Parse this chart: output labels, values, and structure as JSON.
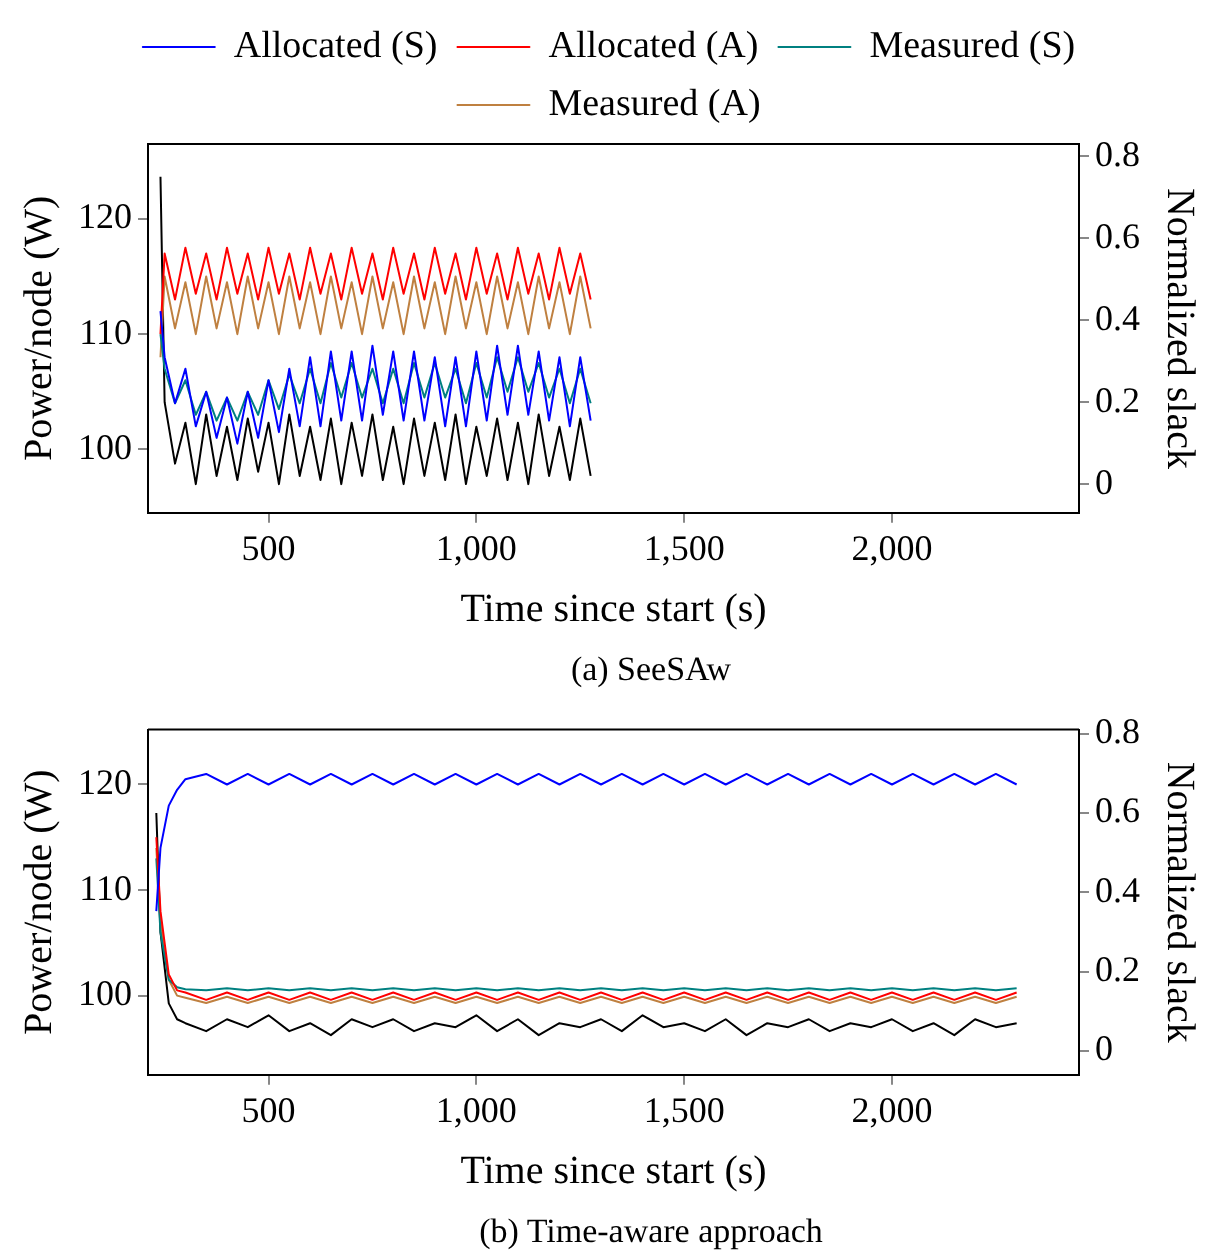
{
  "chart_data": [
    {
      "type": "line",
      "xlabel": "Time since start (s)",
      "ylabel": "Power/node (W)",
      "y2label": "Normalized slack",
      "annotations": [
        "(a) SeeSAw"
      ],
      "legend": "top",
      "marker": "none",
      "line_style": "solid",
      "x": [
        240,
        250,
        275,
        300,
        325,
        350,
        375,
        400,
        425,
        450,
        475,
        500,
        525,
        550,
        575,
        600,
        625,
        650,
        675,
        700,
        725,
        750,
        775,
        800,
        825,
        850,
        875,
        900,
        925,
        950,
        975,
        1000,
        1025,
        1050,
        1075,
        1100,
        1125,
        1150,
        1175,
        1200,
        1225,
        1250,
        1275
      ],
      "xlim": [
        210,
        2450
      ],
      "xticks": [
        {
          "value": 500,
          "label": "500"
        },
        {
          "value": 1000,
          "label": "1,000"
        },
        {
          "value": 1500,
          "label": "1,500"
        },
        {
          "value": 2000,
          "label": "2,000"
        }
      ],
      "ylim": [
        94.5,
        126.5
      ],
      "yticks": [
        100,
        110,
        120
      ],
      "y2lim": [
        -0.07,
        0.83
      ],
      "y2ticks": [
        0,
        0.2,
        0.4,
        0.6,
        0.8
      ],
      "series": [
        {
          "name": "Allocated (S)",
          "color": "#0000ff",
          "values": [
            112,
            108,
            104,
            107,
            102,
            105,
            101,
            104.5,
            100.5,
            105,
            101,
            106,
            101.5,
            107,
            102,
            108,
            102,
            108.5,
            102.5,
            108.5,
            102.5,
            109,
            103,
            108.5,
            102.5,
            108.5,
            102.5,
            108,
            102,
            108,
            102,
            108.5,
            102.5,
            109,
            103,
            109,
            103,
            108.5,
            102.5,
            108,
            102,
            108,
            102.5
          ]
        },
        {
          "name": "Allocated (A)",
          "color": "#ff0000",
          "values": [
            110,
            117,
            113,
            117.5,
            113.5,
            117,
            113,
            117.5,
            113.5,
            117,
            113,
            117.5,
            113.5,
            117,
            113,
            117.5,
            113.5,
            117,
            113,
            117.5,
            113.5,
            117,
            113,
            117.5,
            113.5,
            117,
            113,
            117.5,
            113.5,
            117,
            113,
            117.5,
            113.5,
            117,
            113,
            117.5,
            113.5,
            117,
            113,
            117.5,
            113.5,
            117,
            113
          ]
        },
        {
          "name": "Measured (S)",
          "color": "#008080",
          "values": [
            110,
            107,
            104,
            106,
            103,
            105,
            102.5,
            104.5,
            102.5,
            105,
            103,
            106,
            103.5,
            106.5,
            104,
            107,
            104,
            107.5,
            104.5,
            107.5,
            104.5,
            107,
            104,
            107,
            104,
            107.5,
            104.5,
            107.5,
            104.5,
            107,
            104,
            107.5,
            104.5,
            108,
            105,
            108,
            105,
            107.5,
            104.5,
            107,
            104,
            107,
            104
          ]
        },
        {
          "name": "Measured (A)",
          "color": "#bf8040",
          "values": [
            108,
            115,
            110.5,
            114.5,
            110,
            115,
            110.5,
            114.5,
            110,
            115,
            110.5,
            114.5,
            110,
            115,
            110.5,
            114.5,
            110,
            115,
            110.5,
            114.5,
            110,
            115,
            110.5,
            114.5,
            110,
            115,
            110.5,
            114.5,
            110,
            115,
            110.5,
            114.5,
            110,
            115,
            110.5,
            114.5,
            110,
            115,
            110.5,
            114.5,
            110,
            115,
            110.5
          ]
        },
        {
          "color": "#000000",
          "axis": "y2",
          "values": [
            0.75,
            0.2,
            0.05,
            0.15,
            0.0,
            0.17,
            0.02,
            0.14,
            0.01,
            0.16,
            0.03,
            0.15,
            0.0,
            0.17,
            0.02,
            0.14,
            0.01,
            0.16,
            0.0,
            0.15,
            0.02,
            0.17,
            0.01,
            0.14,
            0.0,
            0.16,
            0.02,
            0.15,
            0.01,
            0.17,
            0.0,
            0.14,
            0.02,
            0.16,
            0.01,
            0.15,
            0.0,
            0.17,
            0.02,
            0.14,
            0.01,
            0.16,
            0.02
          ]
        }
      ]
    },
    {
      "type": "line",
      "xlabel": "Time since start (s)",
      "ylabel": "Power/node (W)",
      "y2label": "Normalized slack",
      "annotations": [
        "(b) Time-aware approach"
      ],
      "marker": "none",
      "line_style": "solid",
      "x": [
        230,
        240,
        260,
        280,
        300,
        350,
        400,
        450,
        500,
        550,
        600,
        650,
        700,
        750,
        800,
        850,
        900,
        950,
        1000,
        1050,
        1100,
        1150,
        1200,
        1250,
        1300,
        1350,
        1400,
        1450,
        1500,
        1550,
        1600,
        1650,
        1700,
        1750,
        1800,
        1850,
        1900,
        1950,
        2000,
        2050,
        2100,
        2150,
        2200,
        2250,
        2300
      ],
      "xlim": [
        210,
        2450
      ],
      "xticks": [
        {
          "value": 500,
          "label": "500"
        },
        {
          "value": 1000,
          "label": "1,000"
        },
        {
          "value": 1500,
          "label": "1,500"
        },
        {
          "value": 2000,
          "label": "2,000"
        }
      ],
      "ylim": [
        92.5,
        125.2
      ],
      "yticks": [
        100,
        110,
        120
      ],
      "y2lim": [
        -0.06,
        0.81
      ],
      "y2ticks": [
        0,
        0.2,
        0.4,
        0.6,
        0.8
      ],
      "series": [
        {
          "color": "#0000ff",
          "values": [
            108,
            114,
            118,
            119.5,
            120.5,
            121,
            120,
            121,
            120,
            121,
            120,
            121,
            120,
            121,
            120,
            121,
            120,
            121,
            120,
            121,
            120,
            121,
            120,
            121,
            120,
            121,
            120,
            121,
            120,
            121,
            120,
            121,
            120,
            121,
            120,
            121,
            120,
            121,
            120,
            121,
            120,
            121,
            120,
            121,
            120
          ]
        },
        {
          "color": "#ff0000",
          "values": [
            115,
            108,
            102,
            100.5,
            100.3,
            99.6,
            100.3,
            99.6,
            100.3,
            99.6,
            100.3,
            99.6,
            100.3,
            99.6,
            100.3,
            99.6,
            100.3,
            99.6,
            100.3,
            99.6,
            100.3,
            99.6,
            100.3,
            99.6,
            100.3,
            99.6,
            100.3,
            99.6,
            100.3,
            99.6,
            100.3,
            99.6,
            100.3,
            99.6,
            100.3,
            99.6,
            100.3,
            99.6,
            100.3,
            99.6,
            100.3,
            99.6,
            100.3,
            99.6,
            100.3
          ]
        },
        {
          "color": "#008080",
          "values": [
            113,
            106,
            101.5,
            100.8,
            100.6,
            100.5,
            100.7,
            100.5,
            100.7,
            100.5,
            100.7,
            100.5,
            100.7,
            100.5,
            100.7,
            100.5,
            100.7,
            100.5,
            100.7,
            100.5,
            100.7,
            100.5,
            100.7,
            100.5,
            100.7,
            100.5,
            100.7,
            100.5,
            100.7,
            100.5,
            100.7,
            100.5,
            100.7,
            100.5,
            100.7,
            100.5,
            100.7,
            100.5,
            100.7,
            100.5,
            100.7,
            100.5,
            100.7,
            100.5,
            100.7
          ]
        },
        {
          "color": "#bf8040",
          "values": [
            114,
            107,
            101.5,
            100,
            99.8,
            99.3,
            99.9,
            99.3,
            99.9,
            99.3,
            99.9,
            99.3,
            99.9,
            99.3,
            99.9,
            99.3,
            99.9,
            99.3,
            99.9,
            99.3,
            99.9,
            99.3,
            99.9,
            99.3,
            99.9,
            99.3,
            99.9,
            99.3,
            99.9,
            99.3,
            99.9,
            99.3,
            99.9,
            99.3,
            99.9,
            99.3,
            99.9,
            99.3,
            99.9,
            99.3,
            99.9,
            99.3,
            99.9,
            99.3,
            99.9
          ]
        },
        {
          "color": "#000000",
          "axis": "y2",
          "values": [
            0.6,
            0.3,
            0.12,
            0.08,
            0.07,
            0.05,
            0.08,
            0.06,
            0.09,
            0.05,
            0.07,
            0.04,
            0.08,
            0.06,
            0.08,
            0.05,
            0.07,
            0.06,
            0.09,
            0.05,
            0.08,
            0.04,
            0.07,
            0.06,
            0.08,
            0.05,
            0.09,
            0.06,
            0.07,
            0.05,
            0.08,
            0.04,
            0.07,
            0.06,
            0.08,
            0.05,
            0.07,
            0.06,
            0.08,
            0.05,
            0.07,
            0.04,
            0.08,
            0.06,
            0.07
          ]
        }
      ]
    }
  ]
}
